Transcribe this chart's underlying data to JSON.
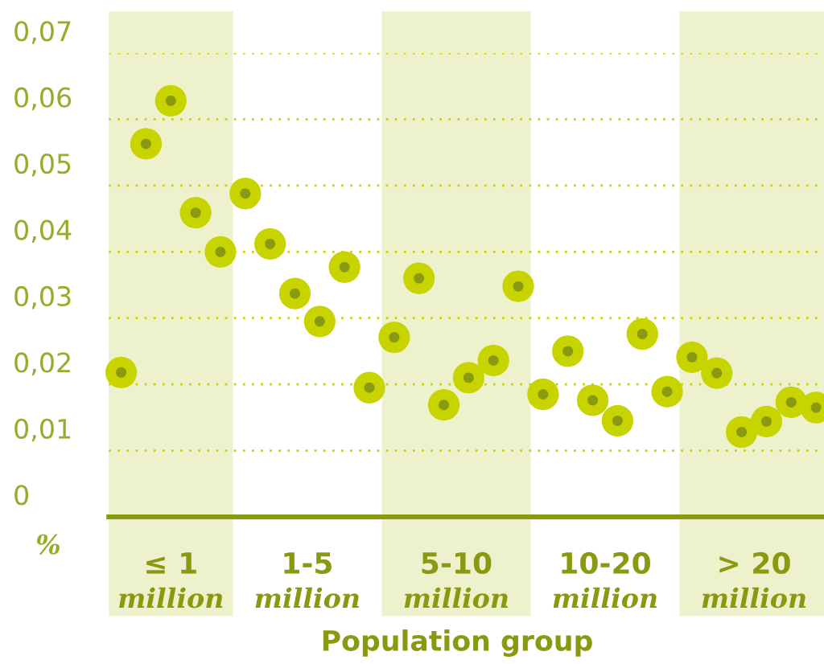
{
  "chart_data": {
    "type": "scatter",
    "xlabel": "Population group",
    "categories": [
      null,
      null,
      null,
      null,
      null,
      null,
      null,
      null,
      null,
      null,
      null,
      null,
      null,
      null,
      null,
      null,
      null,
      null,
      null,
      null,
      null,
      null,
      null,
      null,
      null,
      null,
      null,
      null,
      null
    ],
    "series": [
      {
        "color": "#c8d400",
        "values": [
          0.0218,
          0.0563,
          0.0628,
          0.0459,
          0.04,
          0.0488,
          0.0412,
          0.0337,
          0.0295,
          0.0377,
          0.0195,
          0.0271,
          0.036,
          0.0169,
          0.021,
          0.0236,
          0.0348,
          0.0185,
          0.025,
          0.0176,
          0.0145,
          0.0276,
          0.0189,
          0.0241,
          0.0217,
          0.0128,
          0.0144,
          0.0173,
          0.0165
        ]
      }
    ],
    "marker": "circle",
    "ylim": [
      0,
      0.07
    ],
    "yticks": [
      0,
      {
        "value": 0.01,
        "label": "0,01"
      },
      {
        "value": 0.02,
        "label": "0,02"
      },
      {
        "value": 0.03,
        "label": "0,03"
      },
      {
        "value": 0.04,
        "label": "0,04"
      },
      {
        "value": 0.05,
        "label": "0,05"
      },
      {
        "value": 0.06,
        "label": "0,06"
      },
      {
        "value": 0.07,
        "label": "0,07"
      }
    ],
    "grid": "y",
    "tick_labels": "y",
    "annotations": [
      "%",
      "≤ 1\nmillion",
      "1-5\nmillion",
      "5-10\nmillion",
      "10-20\nmillion",
      "> 20\nmillion"
    ]
  }
}
